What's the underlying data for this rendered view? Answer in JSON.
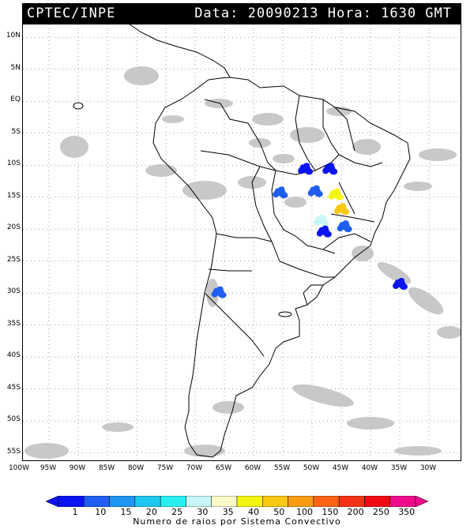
{
  "header": {
    "source": "CPTEC/INPE",
    "datetime": "Data: 20090213 Hora: 1630 GMT"
  },
  "map": {
    "lat_ticks": [
      "10N",
      "5N",
      "EQ",
      "5S",
      "10S",
      "15S",
      "20S",
      "25S",
      "30S",
      "35S",
      "40S",
      "45S",
      "50S",
      "55S"
    ],
    "lon_ticks": [
      "100W",
      "95W",
      "90W",
      "85W",
      "80W",
      "75W",
      "70W",
      "65W",
      "60W",
      "55W",
      "50W",
      "45W",
      "40W",
      "35W",
      "30W"
    ],
    "lightning_clusters": [
      {
        "lon": -51.2,
        "lat": -10.5,
        "class": "1"
      },
      {
        "lon": -47.0,
        "lat": -10.5,
        "class": "1"
      },
      {
        "lon": -55.5,
        "lat": -14.2,
        "class": "10"
      },
      {
        "lon": -49.5,
        "lat": -14.0,
        "class": "10"
      },
      {
        "lon": -46.0,
        "lat": -14.5,
        "class": "40"
      },
      {
        "lon": -45.0,
        "lat": -16.8,
        "class": "50"
      },
      {
        "lon": -48.5,
        "lat": -18.6,
        "class": "30"
      },
      {
        "lon": -48.0,
        "lat": -20.3,
        "class": "1"
      },
      {
        "lon": -44.5,
        "lat": -19.5,
        "class": "10"
      },
      {
        "lon": -35.0,
        "lat": -28.5,
        "class": "1"
      },
      {
        "lon": -66.0,
        "lat": -29.8,
        "class": "10"
      }
    ]
  },
  "colorbar": {
    "labels": [
      "1",
      "10",
      "15",
      "20",
      "25",
      "30",
      "35",
      "40",
      "50",
      "100",
      "150",
      "200",
      "250",
      "350"
    ],
    "colors": [
      "#0a14f0",
      "#1e5ef0",
      "#1f96f2",
      "#1ec8f0",
      "#28f0f0",
      "#c8f5f5",
      "#fafac8",
      "#f5f514",
      "#fac814",
      "#fa9b14",
      "#fa6414",
      "#f53214",
      "#f00a14",
      "#f00a8c"
    ],
    "caption": "Numero de raios por Sistema Convectivo"
  }
}
